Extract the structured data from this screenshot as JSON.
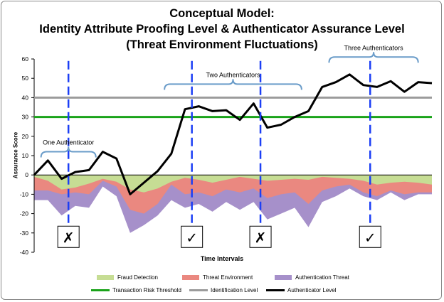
{
  "title_lines": [
    "Conceptual Model:",
    "Identity Attribute Proofing Level & Authenticator Assurance Level",
    "(Threat Environment Fluctuations)"
  ],
  "colors": {
    "fraud": "#c6dd94",
    "threat": "#ea8880",
    "auth_threat": "#a690ca",
    "risk": "#1aa31a",
    "identification": "#9b9b9b",
    "authenticator": "#000000",
    "dashed": "#1c3ff5",
    "brace": "#6a9cc9"
  },
  "brace_labels": [
    "One Authenticator",
    "Two Authenticators",
    "Three Authenticators"
  ],
  "markers": [
    "✗",
    "✓",
    "✗",
    "✓"
  ],
  "chart_data": {
    "type": "area",
    "xlabel": "Time Intervals",
    "ylabel": "Assurance Score",
    "ylim": [
      -40,
      60
    ],
    "yticks": [
      -40,
      -30,
      -20,
      -10,
      0,
      10,
      20,
      30,
      40,
      50,
      60
    ],
    "ytick_labels": [
      "-40",
      "-30",
      "-20",
      "-10",
      "0",
      "10",
      "20",
      "30",
      "40",
      "50",
      "60"
    ],
    "grid": false,
    "legend_position": "bottom",
    "series": [
      {
        "name": "Authenticator Level",
        "type": "line",
        "values": [
          0,
          7.5,
          -2,
          1.5,
          2.5,
          12,
          8.5,
          -10,
          -4,
          2,
          11,
          34,
          35.5,
          33,
          33.5,
          28.5,
          37,
          24.5,
          26,
          30,
          33,
          45.5,
          48,
          52,
          46.5,
          45.5,
          48.5,
          43,
          48,
          47.5
        ]
      },
      {
        "name": "Transaction Risk Threshold",
        "type": "line",
        "constant": 30
      },
      {
        "name": "Identification Level",
        "type": "line",
        "constant": 40
      },
      {
        "name": "Fraud Detection",
        "type": "area",
        "values": [
          -1,
          -3,
          -7.5,
          -6.5,
          -4.5,
          -2,
          -3.5,
          -7.5,
          -9,
          -7,
          -3.5,
          -1.5,
          -2.5,
          -4,
          -2.5,
          -1,
          -2,
          -3,
          -2.5,
          -2,
          -2.5,
          -1,
          -1.5,
          -2,
          -3,
          -5,
          -4,
          -3.5,
          -4,
          -5
        ]
      },
      {
        "name": "Threat Environment",
        "type": "area",
        "values": [
          -8,
          -8,
          -10,
          -9,
          -10,
          -3,
          -6,
          -18,
          -20,
          -15,
          -5,
          -10,
          -9,
          -11,
          -7.5,
          -9,
          -7,
          -12,
          -10,
          -9,
          -15,
          -8,
          -6,
          -5,
          -9,
          -11,
          -8,
          -10,
          -9,
          -9
        ]
      },
      {
        "name": "Authentication Threat",
        "type": "area",
        "values": [
          -13,
          -13,
          -21,
          -16,
          -17,
          -6,
          -11,
          -30,
          -26,
          -21,
          -13,
          -17,
          -15,
          -19,
          -14,
          -18,
          -14,
          -23,
          -20,
          -17,
          -27,
          -14,
          -11,
          -7,
          -11,
          -13,
          -9,
          -13,
          -10,
          -10
        ]
      }
    ],
    "annotations": [
      {
        "type": "dashed_vertical",
        "x_index": 2.5,
        "marker": "✗"
      },
      {
        "type": "dashed_vertical",
        "x_index": 11.5,
        "marker": "✓"
      },
      {
        "type": "dashed_vertical",
        "x_index": 16.5,
        "marker": "✗"
      },
      {
        "type": "dashed_vertical",
        "x_index": 24.5,
        "marker": "✓"
      },
      {
        "type": "brace",
        "label": "One Authenticator",
        "from": 0.5,
        "to": 4.5,
        "y": 12
      },
      {
        "type": "brace",
        "label": "Two Authenticators",
        "from": 9.5,
        "to": 19.5,
        "y": 47
      },
      {
        "type": "brace",
        "label": "Three Authenticators",
        "from": 21.5,
        "to": 28,
        "y": 61
      }
    ]
  },
  "legend": [
    {
      "label": "Fraud Detection",
      "kind": "area",
      "color": "#c6dd94"
    },
    {
      "label": "Threat Environment",
      "kind": "area",
      "color": "#ea8880"
    },
    {
      "label": "Authentication Threat",
      "kind": "area",
      "color": "#a690ca"
    },
    {
      "label": "Transaction Risk Threshold",
      "kind": "line",
      "color": "#1aa31a"
    },
    {
      "label": "Identification Level",
      "kind": "line",
      "color": "#9b9b9b"
    },
    {
      "label": "Authenticator Level",
      "kind": "line",
      "color": "#000000"
    }
  ]
}
